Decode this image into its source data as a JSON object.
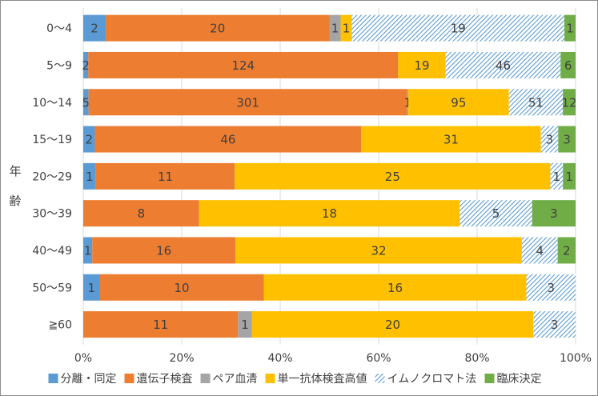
{
  "chart_data": {
    "type": "bar",
    "orientation": "horizontal",
    "stacked": true,
    "normalized": true,
    "ylabel": "年齢",
    "xlabel": "",
    "title": "",
    "xlim": [
      0,
      100
    ],
    "x_ticks": [
      "0%",
      "20%",
      "40%",
      "60%",
      "80%",
      "100%"
    ],
    "categories": [
      "0〜4",
      "5〜9",
      "10〜14",
      "15〜19",
      "20〜29",
      "30〜39",
      "40〜49",
      "50〜59",
      "≧60"
    ],
    "series": [
      {
        "name": "分離・同定",
        "color": "#5b9bd5",
        "pattern": "solid",
        "values": [
          2,
          2,
          5,
          2,
          1,
          0,
          1,
          1,
          0
        ]
      },
      {
        "name": "遺伝子検査",
        "color": "#ed7d31",
        "pattern": "solid",
        "values": [
          20,
          124,
          301,
          46,
          11,
          8,
          16,
          10,
          11
        ]
      },
      {
        "name": "ペア血清",
        "color": "#a5a5a5",
        "pattern": "solid",
        "values": [
          1,
          0,
          1,
          0,
          0,
          0,
          0,
          0,
          1
        ]
      },
      {
        "name": "単一抗体検査高値",
        "color": "#ffc000",
        "pattern": "solid",
        "values": [
          1,
          19,
          95,
          31,
          25,
          18,
          32,
          16,
          20
        ]
      },
      {
        "name": "イムノクロマト法",
        "color": "#5b9bd5",
        "pattern": "hatched",
        "values": [
          19,
          46,
          51,
          3,
          1,
          5,
          4,
          3,
          3
        ]
      },
      {
        "name": "臨床決定",
        "color": "#70ad47",
        "pattern": "solid",
        "values": [
          1,
          6,
          12,
          3,
          1,
          3,
          2,
          0,
          0
        ]
      }
    ],
    "legend_position": "bottom",
    "grid": "vertical"
  }
}
